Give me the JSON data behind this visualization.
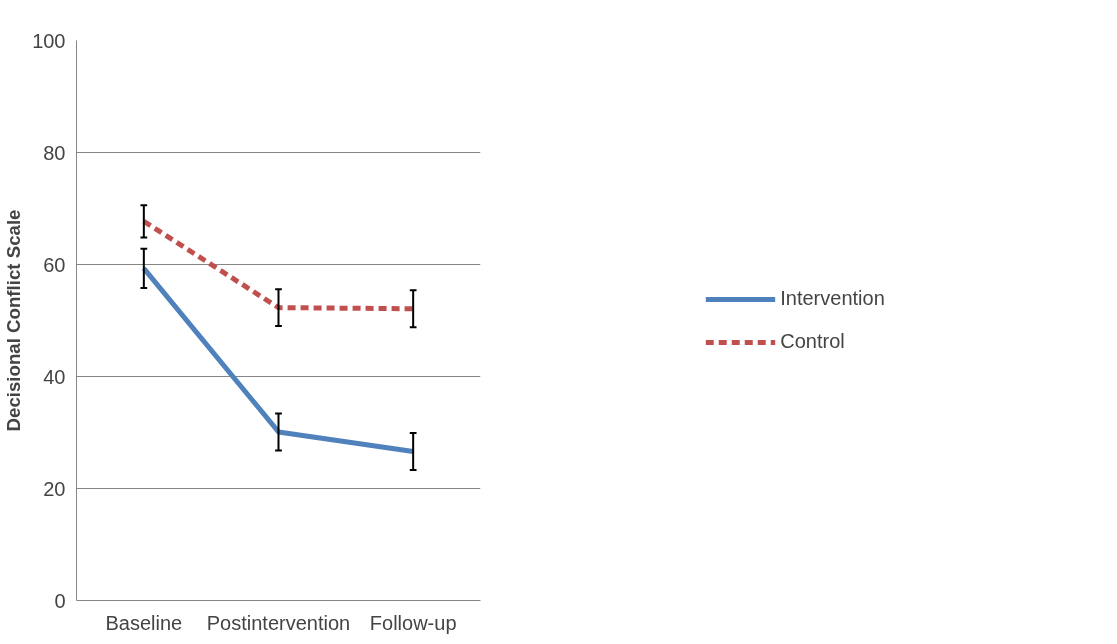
{
  "chart_data": {
    "type": "line",
    "ylabel": "Decisional Conflict Scale",
    "categories": [
      "Baseline",
      "Postintervention",
      "Follow-up"
    ],
    "series": [
      {
        "name": "Intervention",
        "color": "#4f81bd",
        "line_style": "solid",
        "values": [
          59.3,
          30.1,
          26.6
        ],
        "errors": [
          3.5,
          3.3,
          3.3
        ]
      },
      {
        "name": "Control",
        "color": "#c0504d",
        "line_style": "dashed",
        "values": [
          67.7,
          52.3,
          52.1
        ],
        "errors": [
          2.9,
          3.3,
          3.3
        ]
      }
    ],
    "ylim": [
      0,
      100
    ],
    "yticks": [
      0,
      20,
      40,
      60,
      80,
      100
    ],
    "grid": "y",
    "legend": "right",
    "marker": "none"
  }
}
